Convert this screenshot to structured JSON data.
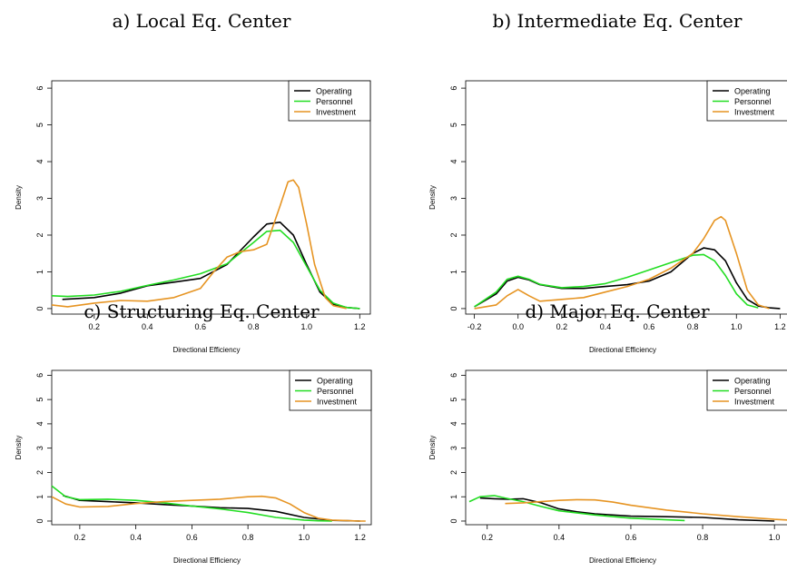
{
  "chart_data": [
    {
      "type": "line",
      "title": "a) Local Eq. Center",
      "xlabel": "Directional Efficiency",
      "ylabel": "Density",
      "xlim": [
        0.04,
        1.24
      ],
      "ylim": [
        -0.15,
        6.2
      ],
      "xticks": [
        0.2,
        0.4,
        0.6,
        0.8,
        1.0,
        1.2
      ],
      "yticks": [
        0,
        1,
        2,
        3,
        4,
        5,
        6
      ],
      "legend": "top-right",
      "series": [
        {
          "name": "Operating",
          "color": "#000000",
          "x": [
            0.08,
            0.2,
            0.3,
            0.4,
            0.5,
            0.6,
            0.7,
            0.8,
            0.85,
            0.9,
            0.95,
            1.0,
            1.05,
            1.1,
            1.15,
            1.2
          ],
          "y": [
            0.25,
            0.3,
            0.42,
            0.62,
            0.72,
            0.82,
            1.2,
            1.95,
            2.3,
            2.35,
            2.0,
            1.2,
            0.45,
            0.12,
            0.03,
            0.0
          ]
        },
        {
          "name": "Personnel",
          "color": "#22dd22",
          "x": [
            0.04,
            0.1,
            0.2,
            0.3,
            0.4,
            0.5,
            0.6,
            0.7,
            0.8,
            0.85,
            0.9,
            0.95,
            1.0,
            1.05,
            1.1,
            1.15,
            1.2
          ],
          "y": [
            0.35,
            0.33,
            0.37,
            0.47,
            0.63,
            0.78,
            0.95,
            1.22,
            1.8,
            2.1,
            2.13,
            1.8,
            1.15,
            0.5,
            0.15,
            0.03,
            0.0
          ]
        },
        {
          "name": "Investment",
          "color": "#e69422",
          "x": [
            0.04,
            0.1,
            0.2,
            0.3,
            0.4,
            0.5,
            0.6,
            0.65,
            0.7,
            0.75,
            0.8,
            0.85,
            0.9,
            0.93,
            0.95,
            0.97,
            1.0,
            1.03,
            1.07,
            1.1,
            1.15
          ],
          "y": [
            0.1,
            0.05,
            0.15,
            0.22,
            0.2,
            0.3,
            0.55,
            1.0,
            1.4,
            1.55,
            1.6,
            1.75,
            2.8,
            3.45,
            3.5,
            3.3,
            2.3,
            1.2,
            0.3,
            0.08,
            0.0
          ]
        }
      ]
    },
    {
      "type": "line",
      "title": "b) Intermediate Eq. Center",
      "xlabel": "Directional Efficiency",
      "ylabel": "Density",
      "xlim": [
        -0.24,
        1.24
      ],
      "ylim": [
        -0.15,
        6.2
      ],
      "xticks": [
        -0.2,
        0.0,
        0.2,
        0.4,
        0.6,
        0.8,
        1.0,
        1.2
      ],
      "yticks": [
        0,
        1,
        2,
        3,
        4,
        5,
        6
      ],
      "legend": "top-right",
      "series": [
        {
          "name": "Operating",
          "color": "#000000",
          "x": [
            -0.2,
            -0.1,
            -0.05,
            0.0,
            0.05,
            0.1,
            0.2,
            0.3,
            0.4,
            0.5,
            0.6,
            0.7,
            0.8,
            0.85,
            0.9,
            0.95,
            1.0,
            1.05,
            1.1,
            1.15,
            1.2
          ],
          "y": [
            0.05,
            0.4,
            0.75,
            0.85,
            0.78,
            0.65,
            0.55,
            0.55,
            0.6,
            0.65,
            0.75,
            1.0,
            1.5,
            1.65,
            1.6,
            1.3,
            0.7,
            0.25,
            0.07,
            0.02,
            0.0
          ]
        },
        {
          "name": "Personnel",
          "color": "#22dd22",
          "x": [
            -0.2,
            -0.1,
            -0.05,
            0.0,
            0.05,
            0.1,
            0.2,
            0.3,
            0.4,
            0.5,
            0.6,
            0.7,
            0.8,
            0.85,
            0.9,
            0.95,
            1.0,
            1.05,
            1.1
          ],
          "y": [
            0.05,
            0.45,
            0.8,
            0.88,
            0.8,
            0.66,
            0.57,
            0.6,
            0.68,
            0.85,
            1.05,
            1.25,
            1.45,
            1.47,
            1.3,
            0.9,
            0.4,
            0.1,
            0.02
          ]
        },
        {
          "name": "Investment",
          "color": "#e69422",
          "x": [
            -0.2,
            -0.1,
            -0.05,
            0.0,
            0.05,
            0.1,
            0.2,
            0.3,
            0.4,
            0.5,
            0.6,
            0.7,
            0.8,
            0.85,
            0.9,
            0.93,
            0.95,
            1.0,
            1.05,
            1.1,
            1.15
          ],
          "y": [
            0.0,
            0.1,
            0.35,
            0.52,
            0.35,
            0.2,
            0.25,
            0.3,
            0.45,
            0.6,
            0.8,
            1.1,
            1.5,
            1.9,
            2.4,
            2.5,
            2.4,
            1.5,
            0.5,
            0.1,
            0.0
          ]
        }
      ]
    },
    {
      "type": "line",
      "title": "c) Structuring Eq. Center",
      "xlabel": "Directional Efficiency",
      "ylabel": "Density",
      "xlim": [
        0.1,
        1.24
      ],
      "ylim": [
        -0.15,
        6.2
      ],
      "xticks": [
        0.2,
        0.4,
        0.6,
        0.8,
        1.0,
        1.2
      ],
      "yticks": [
        0,
        1,
        2,
        3,
        4,
        5,
        6
      ],
      "legend": "top-right",
      "series": [
        {
          "name": "Operating",
          "color": "#000000",
          "x": [
            0.14,
            0.2,
            0.3,
            0.4,
            0.5,
            0.6,
            0.7,
            0.8,
            0.9,
            1.0,
            1.1,
            1.2
          ],
          "y": [
            1.05,
            0.85,
            0.8,
            0.75,
            0.68,
            0.62,
            0.55,
            0.52,
            0.4,
            0.15,
            0.03,
            0.0
          ]
        },
        {
          "name": "Personnel",
          "color": "#22dd22",
          "x": [
            0.1,
            0.15,
            0.2,
            0.3,
            0.4,
            0.5,
            0.6,
            0.7,
            0.8,
            0.9,
            1.0,
            1.05,
            1.1
          ],
          "y": [
            1.45,
            1.0,
            0.88,
            0.9,
            0.85,
            0.75,
            0.62,
            0.5,
            0.35,
            0.15,
            0.04,
            0.01,
            0.0
          ]
        },
        {
          "name": "Investment",
          "color": "#e69422",
          "x": [
            0.1,
            0.15,
            0.2,
            0.3,
            0.4,
            0.5,
            0.6,
            0.7,
            0.8,
            0.85,
            0.9,
            0.95,
            1.0,
            1.05,
            1.1,
            1.2,
            1.22
          ],
          "y": [
            1.0,
            0.7,
            0.58,
            0.6,
            0.72,
            0.8,
            0.85,
            0.9,
            1.0,
            1.02,
            0.95,
            0.7,
            0.35,
            0.12,
            0.04,
            0.0,
            0.0
          ]
        }
      ]
    },
    {
      "type": "line",
      "title": "d) Major Eq. Center",
      "xlabel": "Directional Efficiency",
      "ylabel": "Density",
      "xlim": [
        0.14,
        1.04
      ],
      "ylim": [
        -0.15,
        6.2
      ],
      "xticks": [
        0.2,
        0.4,
        0.6,
        0.8,
        1.0
      ],
      "yticks": [
        0,
        1,
        2,
        3,
        4,
        5,
        6
      ],
      "legend": "top-right",
      "series": [
        {
          "name": "Operating",
          "color": "#000000",
          "x": [
            0.18,
            0.22,
            0.26,
            0.3,
            0.35,
            0.4,
            0.45,
            0.5,
            0.6,
            0.7,
            0.8,
            0.9,
            1.0
          ],
          "y": [
            0.95,
            0.92,
            0.9,
            0.92,
            0.75,
            0.5,
            0.38,
            0.3,
            0.2,
            0.18,
            0.15,
            0.05,
            0.0
          ]
        },
        {
          "name": "Personnel",
          "color": "#22dd22",
          "x": [
            0.15,
            0.18,
            0.22,
            0.25,
            0.3,
            0.35,
            0.4,
            0.5,
            0.6,
            0.7,
            0.75
          ],
          "y": [
            0.8,
            1.0,
            1.05,
            0.95,
            0.8,
            0.6,
            0.42,
            0.25,
            0.12,
            0.05,
            0.02
          ]
        },
        {
          "name": "Investment",
          "color": "#e69422",
          "x": [
            0.25,
            0.3,
            0.35,
            0.4,
            0.45,
            0.5,
            0.55,
            0.6,
            0.7,
            0.8,
            0.9,
            1.0,
            1.04
          ],
          "y": [
            0.72,
            0.75,
            0.8,
            0.85,
            0.88,
            0.87,
            0.78,
            0.65,
            0.45,
            0.3,
            0.18,
            0.07,
            0.04
          ]
        }
      ]
    }
  ]
}
